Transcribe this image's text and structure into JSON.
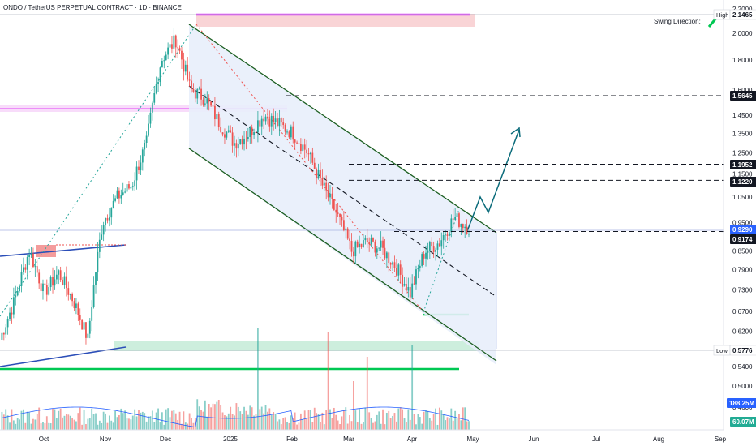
{
  "header": {
    "title": "ONDO / TetherUS PERPETUAL CONTRACT · 1D · BINANCE",
    "swing_direction_label": "Swing Direction:"
  },
  "price_axis": {
    "ticks": [
      "2.2000",
      "2.0000",
      "1.8000",
      "1.6000",
      "1.4500",
      "1.3500",
      "1.2500",
      "1.1500",
      "1.0500",
      "0.9500",
      "0.8500",
      "0.7900",
      "0.7300",
      "0.6700",
      "0.6200",
      "0.5800",
      "0.5400",
      "0.5000",
      "0.4600"
    ],
    "labels": [
      {
        "text": "High",
        "kind": "tag"
      },
      {
        "text": "2.1465",
        "kind": "badge",
        "color": "#ffffff",
        "text_color": "#131722",
        "value": 2.1465
      },
      {
        "text": "1.5645",
        "kind": "badge",
        "color": "#131722",
        "text_color": "#ffffff",
        "value": 1.5645
      },
      {
        "text": "1.1952",
        "kind": "badge",
        "color": "#131722",
        "text_color": "#ffffff",
        "value": 1.1952
      },
      {
        "text": "1.1220",
        "kind": "badge",
        "color": "#131722",
        "text_color": "#ffffff",
        "value": 1.122
      },
      {
        "text": "0.9290",
        "kind": "badge",
        "color": "#2962ff",
        "text_color": "#ffffff",
        "value": 0.929
      },
      {
        "text": "0.9174",
        "kind": "badge",
        "color": "#131722",
        "text_color": "#ffffff",
        "value": 0.9174
      },
      {
        "text": "Low",
        "kind": "tag"
      },
      {
        "text": "0.5776",
        "kind": "badge",
        "color": "#ffffff",
        "text_color": "#131722",
        "value": 0.5776
      },
      {
        "text": "188.25M",
        "kind": "badge",
        "color": "#2962ff",
        "text_color": "#ffffff"
      },
      {
        "text": "60.07M",
        "kind": "badge",
        "color": "#22ab94",
        "text_color": "#ffffff"
      }
    ]
  },
  "time_axis": {
    "labels": [
      "Oct",
      "Nov",
      "Dec",
      "2025",
      "Feb",
      "Mar",
      "Apr",
      "May",
      "Jun",
      "Jul",
      "Aug",
      "Sep"
    ]
  },
  "colors": {
    "up": "#26a69a",
    "down": "#ef5350",
    "channel_fill": "#e8eefb",
    "channel_line": "#1b5e20",
    "magenta": "#e040fb",
    "support": "#00c853",
    "volume_ma": "#2962ff"
  },
  "chart_data": {
    "type": "candlestick",
    "symbol": "ONDO/USDT",
    "timeframe": "1D",
    "x_range": [
      "Sep 2024",
      "Sep 2025"
    ],
    "y_range": [
      0.46,
      2.2
    ],
    "log_scale": true,
    "grid": false,
    "key_levels": [
      2.1465,
      1.5645,
      1.1952,
      1.122,
      0.929,
      0.9174,
      0.5776
    ],
    "high": 2.1465,
    "low": 0.5776,
    "last_price": 0.929,
    "volume_last": "188.25M",
    "volume_ma": "60.07M",
    "approx_closes": [
      {
        "date": "Sep 22",
        "price": 0.6
      },
      {
        "date": "Oct 1",
        "price": 0.7
      },
      {
        "date": "Oct 8",
        "price": 0.85
      },
      {
        "date": "Oct 15",
        "price": 0.72
      },
      {
        "date": "Oct 22",
        "price": 0.78
      },
      {
        "date": "Oct 29",
        "price": 0.7
      },
      {
        "date": "Nov 5",
        "price": 0.6
      },
      {
        "date": "Nov 12",
        "price": 0.95
      },
      {
        "date": "Nov 19",
        "price": 1.05
      },
      {
        "date": "Nov 26",
        "price": 1.1
      },
      {
        "date": "Dec 3",
        "price": 1.3
      },
      {
        "date": "Dec 6",
        "price": 1.8
      },
      {
        "date": "Dec 14",
        "price": 1.95
      },
      {
        "date": "Dec 24",
        "price": 1.6
      },
      {
        "date": "Jan 1",
        "price": 1.55
      },
      {
        "date": "Jan 8",
        "price": 1.4
      },
      {
        "date": "Jan 15",
        "price": 1.3
      },
      {
        "date": "Jan 22",
        "price": 1.35
      },
      {
        "date": "Jan 29",
        "price": 1.45
      },
      {
        "date": "Feb 5",
        "price": 1.4
      },
      {
        "date": "Feb 12",
        "price": 1.35
      },
      {
        "date": "Feb 19",
        "price": 1.25
      },
      {
        "date": "Feb 26",
        "price": 1.1
      },
      {
        "date": "Mar 5",
        "price": 0.98
      },
      {
        "date": "Mar 12",
        "price": 0.85
      },
      {
        "date": "Mar 19",
        "price": 0.88
      },
      {
        "date": "Mar 26",
        "price": 0.86
      },
      {
        "date": "Apr 2",
        "price": 0.8
      },
      {
        "date": "Apr 7",
        "price": 0.72
      },
      {
        "date": "Apr 14",
        "price": 0.85
      },
      {
        "date": "Apr 21",
        "price": 0.88
      },
      {
        "date": "Apr 28",
        "price": 0.97
      },
      {
        "date": "May 1",
        "price": 0.93
      }
    ]
  }
}
